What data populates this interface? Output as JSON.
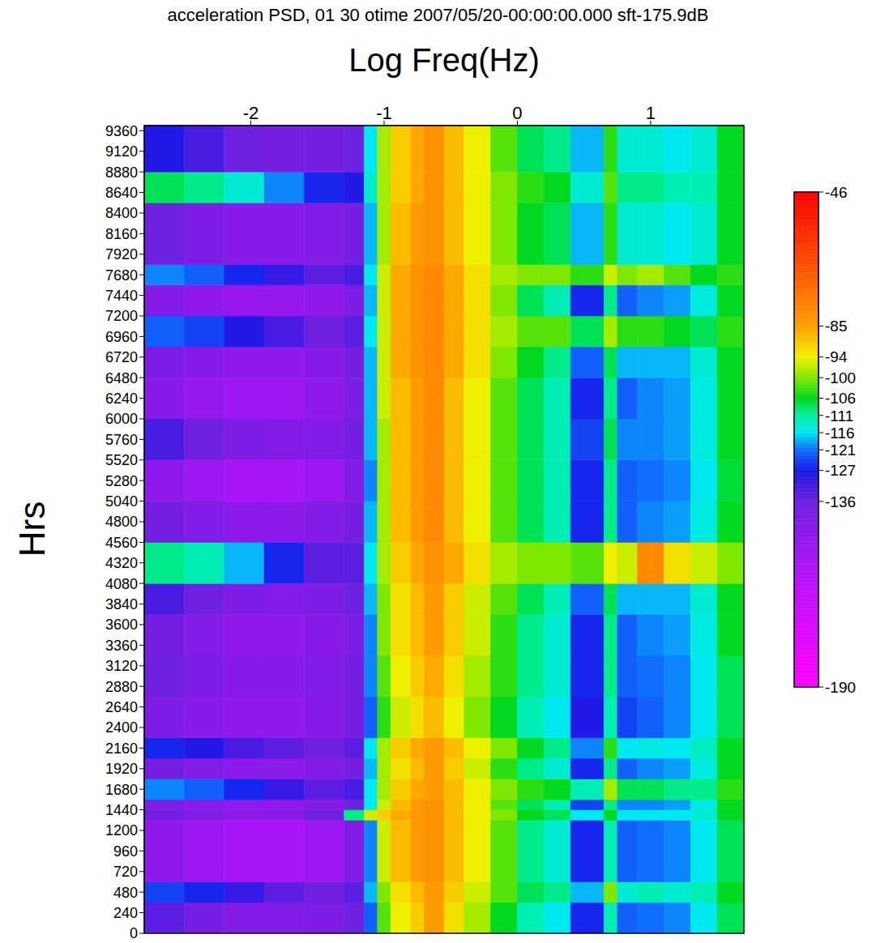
{
  "chart_data": {
    "type": "heatmap",
    "title": "acceleration PSD, 01 30 otime 2007/05/20-00:00:00.000 sft-175.9dB",
    "x_label": "Log Freq(Hz)",
    "y_label": "Hrs",
    "log": "x",
    "xlim": [
      -2.8,
      1.7
    ],
    "ylim": [
      0,
      9420
    ],
    "xticks": [
      -2,
      -1,
      0,
      1
    ],
    "yticks": [
      0,
      240,
      480,
      720,
      960,
      1200,
      1440,
      1680,
      1920,
      2160,
      2400,
      2640,
      2880,
      3120,
      3360,
      3600,
      3840,
      4080,
      4320,
      4560,
      4800,
      5040,
      5280,
      5520,
      5760,
      6000,
      6240,
      6480,
      6720,
      6960,
      7200,
      7440,
      7680,
      7920,
      8160,
      8400,
      8640,
      8880,
      9120,
      9360
    ],
    "x_bins": [
      -2.8,
      -2.5,
      -2.2,
      -1.9,
      -1.6,
      -1.3,
      -1.15,
      -1.05,
      -0.95,
      -0.8,
      -0.7,
      -0.55,
      -0.4,
      -0.2,
      0,
      0.2,
      0.4,
      0.65,
      0.75,
      0.9,
      1.1,
      1.3,
      1.5,
      1.7
    ],
    "y_bins": [
      0,
      360,
      600,
      1320,
      1440,
      1560,
      1800,
      2040,
      2280,
      2760,
      3240,
      3720,
      4080,
      4560,
      5040,
      5520,
      6000,
      6480,
      6840,
      7200,
      7560,
      7800,
      8520,
      8880,
      9420
    ],
    "cells": [
      [
        -134,
        -138,
        -142,
        -142,
        -140,
        -136,
        -122,
        -102,
        -94,
        -90,
        -84,
        -92,
        -98,
        -106,
        -112,
        -116,
        -126,
        -112,
        -122,
        -121,
        -120,
        -116,
        -108
      ],
      [
        -124,
        -126,
        -130,
        -134,
        -136,
        -134,
        -118,
        -100,
        -92,
        -88,
        -84,
        -90,
        -96,
        -102,
        -108,
        -110,
        -118,
        -100,
        -114,
        -112,
        -114,
        -112,
        -106
      ],
      [
        -146,
        -150,
        -154,
        -154,
        -150,
        -142,
        -120,
        -96,
        -88,
        -84,
        -82,
        -88,
        -94,
        -102,
        -110,
        -114,
        -126,
        -112,
        -122,
        -121,
        -120,
        -116,
        -108
      ],
      [
        -138,
        -142,
        -145,
        -144,
        -136,
        -110,
        -96,
        -90,
        -86,
        -84,
        -82,
        -88,
        -94,
        -100,
        -106,
        -108,
        -116,
        -106,
        -116,
        -116,
        -116,
        -114,
        -106
      ],
      [
        -140,
        -144,
        -146,
        -146,
        -142,
        -136,
        -116,
        -96,
        -88,
        -84,
        -82,
        -88,
        -94,
        -102,
        -108,
        -112,
        -124,
        -110,
        -120,
        -120,
        -119,
        -115,
        -106
      ],
      [
        -120,
        -122,
        -126,
        -130,
        -134,
        -132,
        -116,
        -98,
        -90,
        -86,
        -84,
        -88,
        -94,
        -100,
        -104,
        -106,
        -112,
        -98,
        -108,
        -108,
        -110,
        -110,
        -104
      ],
      [
        -138,
        -142,
        -145,
        -145,
        -142,
        -138,
        -118,
        -98,
        -92,
        -88,
        -84,
        -90,
        -96,
        -104,
        -110,
        -114,
        -126,
        -110,
        -122,
        -120,
        -119,
        -115,
        -106
      ],
      [
        -126,
        -128,
        -132,
        -134,
        -136,
        -134,
        -116,
        -98,
        -90,
        -86,
        -84,
        -88,
        -94,
        -100,
        -106,
        -110,
        -120,
        -104,
        -116,
        -115,
        -116,
        -113,
        -106
      ],
      [
        -140,
        -144,
        -146,
        -146,
        -144,
        -138,
        -122,
        -104,
        -96,
        -92,
        -88,
        -94,
        -100,
        -106,
        -112,
        -116,
        -128,
        -112,
        -124,
        -122,
        -120,
        -116,
        -108
      ],
      [
        -136,
        -140,
        -144,
        -144,
        -142,
        -138,
        -120,
        -102,
        -94,
        -90,
        -86,
        -92,
        -98,
        -104,
        -110,
        -114,
        -126,
        -110,
        -122,
        -121,
        -120,
        -116,
        -108
      ],
      [
        -138,
        -142,
        -146,
        -146,
        -144,
        -140,
        -120,
        -100,
        -92,
        -88,
        -84,
        -90,
        -96,
        -104,
        -110,
        -114,
        -126,
        -110,
        -122,
        -120,
        -119,
        -115,
        -106
      ],
      [
        -132,
        -136,
        -140,
        -142,
        -140,
        -136,
        -118,
        -100,
        -92,
        -88,
        -84,
        -90,
        -96,
        -102,
        -108,
        -112,
        -122,
        -108,
        -118,
        -118,
        -118,
        -114,
        -106
      ],
      [
        -110,
        -112,
        -118,
        -126,
        -134,
        -134,
        -116,
        -98,
        -90,
        -86,
        -82,
        -86,
        -92,
        -98,
        -100,
        -100,
        -102,
        -94,
        -96,
        -80,
        -92,
        -96,
        -100
      ],
      [
        -138,
        -142,
        -145,
        -145,
        -142,
        -138,
        -118,
        -98,
        -88,
        -84,
        -80,
        -88,
        -94,
        -102,
        -108,
        -112,
        -126,
        -110,
        -122,
        -120,
        -119,
        -115,
        -106
      ],
      [
        -146,
        -150,
        -154,
        -154,
        -150,
        -142,
        -120,
        -98,
        -88,
        -84,
        -80,
        -88,
        -94,
        -102,
        -108,
        -112,
        -126,
        -110,
        -122,
        -121,
        -120,
        -116,
        -107
      ],
      [
        -132,
        -136,
        -140,
        -142,
        -142,
        -138,
        -118,
        -98,
        -88,
        -84,
        -80,
        -88,
        -94,
        -102,
        -108,
        -112,
        -124,
        -108,
        -120,
        -120,
        -119,
        -115,
        -106
      ],
      [
        -144,
        -148,
        -150,
        -150,
        -146,
        -140,
        -118,
        -96,
        -88,
        -84,
        -80,
        -88,
        -94,
        -102,
        -108,
        -112,
        -126,
        -110,
        -122,
        -120,
        -119,
        -115,
        -106
      ],
      [
        -140,
        -144,
        -146,
        -146,
        -144,
        -138,
        -118,
        -96,
        -86,
        -82,
        -80,
        -86,
        -92,
        -100,
        -106,
        -110,
        -122,
        -108,
        -118,
        -118,
        -118,
        -114,
        -106
      ],
      [
        -122,
        -124,
        -128,
        -132,
        -136,
        -134,
        -116,
        -96,
        -86,
        -82,
        -80,
        -86,
        -92,
        -98,
        -102,
        -102,
        -108,
        -98,
        -104,
        -104,
        -106,
        -108,
        -104
      ],
      [
        -142,
        -146,
        -148,
        -148,
        -146,
        -140,
        -118,
        -96,
        -86,
        -82,
        -80,
        -86,
        -92,
        -100,
        -108,
        -112,
        -126,
        -110,
        -122,
        -120,
        -119,
        -115,
        -106
      ],
      [
        -120,
        -122,
        -126,
        -130,
        -134,
        -132,
        -116,
        -96,
        -86,
        -82,
        -80,
        -86,
        -92,
        -98,
        -100,
        -100,
        -104,
        -96,
        -100,
        -98,
        -102,
        -106,
        -104
      ],
      [
        -136,
        -140,
        -144,
        -144,
        -142,
        -138,
        -118,
        -98,
        -88,
        -84,
        -82,
        -88,
        -94,
        -100,
        -106,
        -108,
        -118,
        -104,
        -114,
        -114,
        -116,
        -114,
        -106
      ],
      [
        -108,
        -110,
        -114,
        -120,
        -126,
        -128,
        -114,
        -98,
        -90,
        -86,
        -82,
        -88,
        -94,
        -100,
        -104,
        -106,
        -114,
        -102,
        -110,
        -110,
        -112,
        -112,
        -106
      ],
      [
        -128,
        -132,
        -136,
        -138,
        -138,
        -136,
        -116,
        -98,
        -90,
        -86,
        -82,
        -88,
        -94,
        -102,
        -108,
        -110,
        -118,
        -104,
        -114,
        -114,
        -116,
        -114,
        -106
      ]
    ],
    "colorbar": {
      "range": [
        -190,
        -46
      ],
      "ticks": [
        -46,
        -85,
        -94,
        -100,
        -106,
        -111,
        -116,
        -121,
        -127,
        -136,
        -190
      ]
    }
  }
}
